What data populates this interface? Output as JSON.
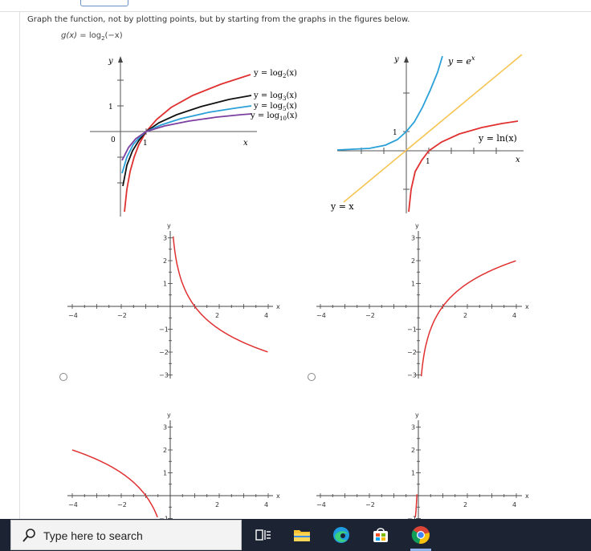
{
  "question": {
    "instruction": "Graph the function, not by plotting points, but by starting from the graphs in the figures below.",
    "function_name": "g(x)",
    "function_eq": " = log",
    "function_base": "2",
    "function_arg": "(−x)"
  },
  "fig_left": {
    "y_axis_label": "y",
    "x_axis_label": "x",
    "one_label": "1",
    "zero_label": "0",
    "x_one_label": "1",
    "legend": [
      "y = log",
      "y = log",
      "y = log",
      "y = log"
    ],
    "legend_bases": [
      "2",
      "3",
      "5",
      "10"
    ],
    "legend_suffix": "(x)"
  },
  "fig_right": {
    "y_axis_label": "y",
    "x_axis_label": "x",
    "exp_label": "y = e",
    "exp_sup": "x",
    "ln_label": "y = ln(x)",
    "identity_label": "y = x",
    "y_one_label": "1",
    "x_one_label": "1"
  },
  "options": {
    "axis_x_label": "x",
    "axis_y_label": "y",
    "x_ticks": [
      "−4",
      "−2",
      "2",
      "4"
    ],
    "y_ticks": [
      "3",
      "2",
      "1",
      "−1",
      "−2",
      "−3"
    ]
  },
  "taskbar": {
    "search_placeholder": "Type here to search"
  },
  "colors": {
    "red": "#e03030",
    "black": "#111111",
    "blue": "#2aa0d8",
    "purple": "#7b3fa0",
    "orange": "#f5c451"
  }
}
